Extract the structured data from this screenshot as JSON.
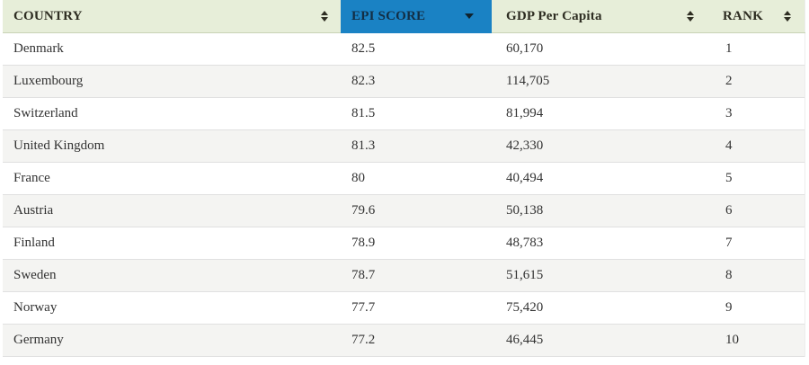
{
  "table": {
    "columns": [
      {
        "label": "COUNTRY",
        "sort_icon": "sort-both-icon",
        "active": false
      },
      {
        "label": "EPI SCORE",
        "sort_icon": "sort-desc-icon",
        "active": true
      },
      {
        "label": "GDP Per Capita",
        "sort_icon": "sort-both-icon",
        "active": false
      },
      {
        "label": "RANK",
        "sort_icon": "sort-both-icon",
        "active": false
      }
    ],
    "rows": [
      {
        "country": "Denmark",
        "epi_score": "82.5",
        "gdp_per_capita": "60,170",
        "rank": "1"
      },
      {
        "country": "Luxembourg",
        "epi_score": "82.3",
        "gdp_per_capita": "114,705",
        "rank": "2"
      },
      {
        "country": "Switzerland",
        "epi_score": "81.5",
        "gdp_per_capita": "81,994",
        "rank": "3"
      },
      {
        "country": "United Kingdom",
        "epi_score": "81.3",
        "gdp_per_capita": "42,330",
        "rank": "4"
      },
      {
        "country": "France",
        "epi_score": "80",
        "gdp_per_capita": "40,494",
        "rank": "5"
      },
      {
        "country": "Austria",
        "epi_score": "79.6",
        "gdp_per_capita": "50,138",
        "rank": "6"
      },
      {
        "country": "Finland",
        "epi_score": "78.9",
        "gdp_per_capita": "48,783",
        "rank": "7"
      },
      {
        "country": "Sweden",
        "epi_score": "78.7",
        "gdp_per_capita": "51,615",
        "rank": "8"
      },
      {
        "country": "Norway",
        "epi_score": "77.7",
        "gdp_per_capita": "75,420",
        "rank": "9"
      },
      {
        "country": "Germany",
        "epi_score": "77.2",
        "gdp_per_capita": "46,445",
        "rank": "10"
      }
    ]
  },
  "colors": {
    "header-bg": "#e7eed9",
    "header-text": "#2e2d22",
    "active-col-bg": "#1a82c4",
    "active-col-text": "#132e44",
    "row-bg": "#ffffff",
    "row-alt-bg": "#f4f4f2",
    "row-text": "#333333",
    "border": "#e0e0e0",
    "header-border": "#c9d3b6"
  }
}
